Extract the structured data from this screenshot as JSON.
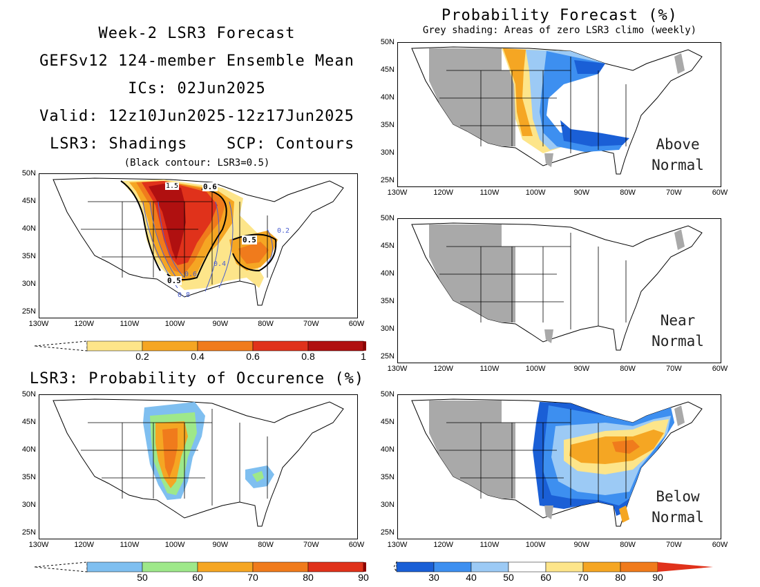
{
  "header": {
    "title": "Week-2 LSR3 Forecast",
    "model": "GEFSv12 124-member Ensemble Mean",
    "ics": "ICs: 02Jun2025",
    "valid": "Valid: 12z10Jun2025-12z17Jun2025",
    "shadings": "LSR3: Shadings",
    "contours": "SCP: Contours",
    "black_contour": "(Black contour: LSR3=0.5)"
  },
  "right_header": {
    "title": "Probability Forecast (%)",
    "subtitle": "Grey shading: Areas of zero LSR3 climo (weekly)"
  },
  "occurrence_title": "LSR3: Probability of Occurence (%)",
  "axes": {
    "lat_labels": [
      "50N",
      "45N",
      "40N",
      "35N",
      "30N",
      "25N"
    ],
    "lon_labels": [
      "130W",
      "120W",
      "110W",
      "100W",
      "90W",
      "80W",
      "70W",
      "60W"
    ]
  },
  "panels": {
    "above": {
      "line1": "Above",
      "line2": "Normal"
    },
    "near": {
      "line1": "Near",
      "line2": "Normal"
    },
    "below": {
      "line1": "Below",
      "line2": "Normal"
    }
  },
  "contour_labels": {
    "lsr_1_5": "1.5",
    "lsr_0_6": "0.6",
    "lsr_0_5_a": "0.5",
    "lsr_0_5_b": "0.5",
    "scp_0_2": "0.2",
    "scp_0_4": "0.4",
    "scp_0_6": "0.6",
    "scp_0_8": "0.8"
  },
  "colorbars": {
    "lsr3": {
      "labels": [
        "0.2",
        "0.4",
        "0.6",
        "0.8",
        "1"
      ],
      "colors": [
        "#fde58a",
        "#f5a623",
        "#f07b1c",
        "#e0321b",
        "#b01010",
        "#8b0000"
      ]
    },
    "occurrence": {
      "labels": [
        "50",
        "60",
        "70",
        "80",
        "90"
      ],
      "colors": [
        "#7fbff0",
        "#9ee88a",
        "#f5a623",
        "#f07b1c",
        "#e0321b",
        "#8b0000"
      ]
    },
    "probability": {
      "labels": [
        "30",
        "40",
        "50",
        "60",
        "70",
        "80",
        "90"
      ],
      "colors": [
        "#1a5fd6",
        "#3d8ff0",
        "#9ccaf5",
        "#ffffff",
        "#fde58a",
        "#f5a623",
        "#f07b1c",
        "#e0321b"
      ]
    }
  },
  "colors": {
    "grey_zero_climo": "#a9a9a9",
    "scp_contour": "#4a5fcf",
    "lsr_contour": "#000000"
  }
}
